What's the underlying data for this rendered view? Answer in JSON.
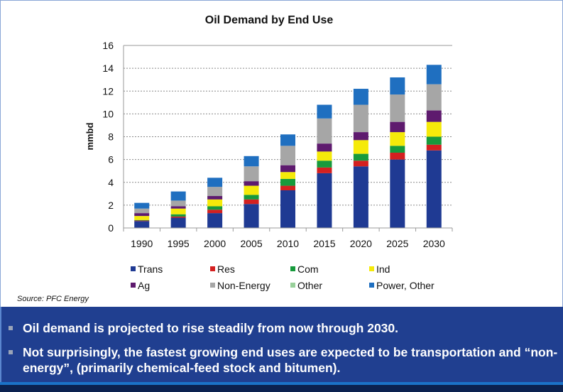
{
  "source": "Source: PFC Energy",
  "bullets": [
    "Oil demand is projected to rise steadily from now through 2030.",
    "Not surprisingly, the fastest growing end uses are expected to be transportation and “non-energy”, (primarily chemical-feed stock and bitumen)."
  ],
  "chart_data": {
    "type": "bar",
    "stacked": true,
    "title": "Oil Demand by End Use",
    "xlabel": "",
    "ylabel": "mmbd",
    "ylim": [
      0,
      16
    ],
    "yticks": [
      0,
      2,
      4,
      6,
      8,
      10,
      12,
      14,
      16
    ],
    "grid": true,
    "legend_position": "bottom",
    "categories": [
      "1990",
      "1995",
      "2000",
      "2005",
      "2010",
      "2015",
      "2020",
      "2025",
      "2030"
    ],
    "series": [
      {
        "name": "Trans",
        "color": "#1f3a93",
        "values": [
          0.6,
          0.9,
          1.3,
          2.1,
          3.3,
          4.8,
          5.4,
          6.0,
          6.8
        ]
      },
      {
        "name": "Res",
        "color": "#d42020",
        "values": [
          0.05,
          0.1,
          0.3,
          0.4,
          0.4,
          0.5,
          0.5,
          0.6,
          0.5
        ]
      },
      {
        "name": "Com",
        "color": "#179a3c",
        "values": [
          0.05,
          0.2,
          0.3,
          0.4,
          0.6,
          0.6,
          0.6,
          0.6,
          0.7
        ]
      },
      {
        "name": "Ind",
        "color": "#f5ea0a",
        "values": [
          0.35,
          0.5,
          0.6,
          0.8,
          0.6,
          0.8,
          1.2,
          1.2,
          1.3
        ]
      },
      {
        "name": "Ag",
        "color": "#5e1a6e",
        "values": [
          0.25,
          0.2,
          0.3,
          0.4,
          0.6,
          0.7,
          0.7,
          0.9,
          1.0
        ]
      },
      {
        "name": "Non-Energy",
        "color": "#a6a6a6",
        "values": [
          0.4,
          0.5,
          0.8,
          1.3,
          1.7,
          2.2,
          2.4,
          2.4,
          2.3
        ]
      },
      {
        "name": "Other",
        "color": "#98d09a",
        "values": [
          0,
          0,
          0,
          0,
          0,
          0,
          0,
          0,
          0
        ]
      },
      {
        "name": "Power, Other",
        "color": "#1f6fc0",
        "values": [
          0.5,
          0.8,
          0.8,
          0.9,
          1.0,
          1.2,
          1.4,
          1.5,
          1.7
        ]
      }
    ],
    "totals": [
      2.2,
      3.2,
      4.4,
      6.3,
      8.2,
      10.8,
      12.2,
      13.2,
      14.3
    ]
  }
}
